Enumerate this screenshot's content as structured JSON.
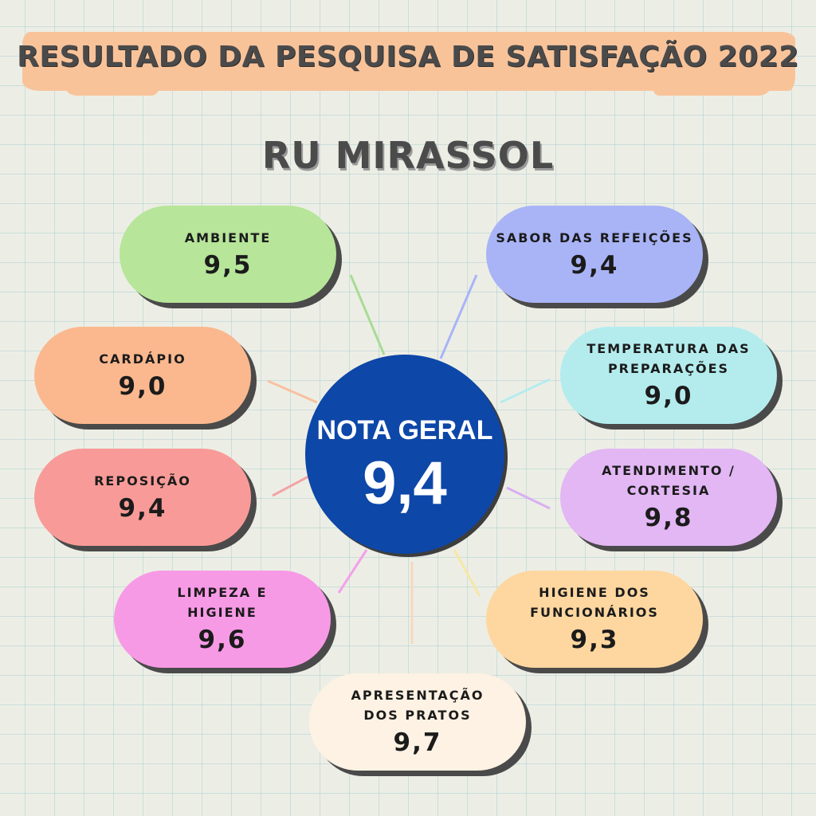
{
  "header": {
    "title": "RESULTADO DA PESQUISA DE SATISFAÇÃO 2022",
    "subtitle": "RU MIRASSOL"
  },
  "overall": {
    "label": "NOTA GERAL",
    "value": "9,4",
    "color": "#0d47a8"
  },
  "categories": [
    {
      "label": "AMBIENTE",
      "value": "9,5",
      "color": "#b7e59a",
      "line_color": "#a8dc94"
    },
    {
      "label": "SABOR DAS REFEIÇÕES",
      "value": "9,4",
      "color": "#a9b4f7",
      "line_color": "#a9b4f7"
    },
    {
      "label": "CARDÁPIO",
      "value": "9,0",
      "color": "#fbb88e",
      "line_color": "#f8c0a0"
    },
    {
      "label": "TEMPERATURA DAS PREPARAÇÕES",
      "value": "9,0",
      "color": "#b4ecee",
      "line_color": "#b4ecee"
    },
    {
      "label": "REPOSIÇÃO",
      "value": "9,4",
      "color": "#f89b98",
      "line_color": "#f3a3a5"
    },
    {
      "label": "ATENDIMENTO / CORTESIA",
      "value": "9,8",
      "color": "#e2b7f4",
      "line_color": "#d9aef2"
    },
    {
      "label": "LIMPEZA E HIGIENE",
      "value": "9,6",
      "color": "#f79ae6",
      "line_color": "#f5a0ea"
    },
    {
      "label": "HIGIENE DOS FUNCIONÁRIOS",
      "value": "9,3",
      "color": "#fed7a0",
      "line_color": "#f6e7a6"
    },
    {
      "label": "APRESENTAÇÃO DOS PRATOS",
      "value": "9,7",
      "color": "#fdf2e3",
      "line_color": "#f6d8bf"
    }
  ]
}
